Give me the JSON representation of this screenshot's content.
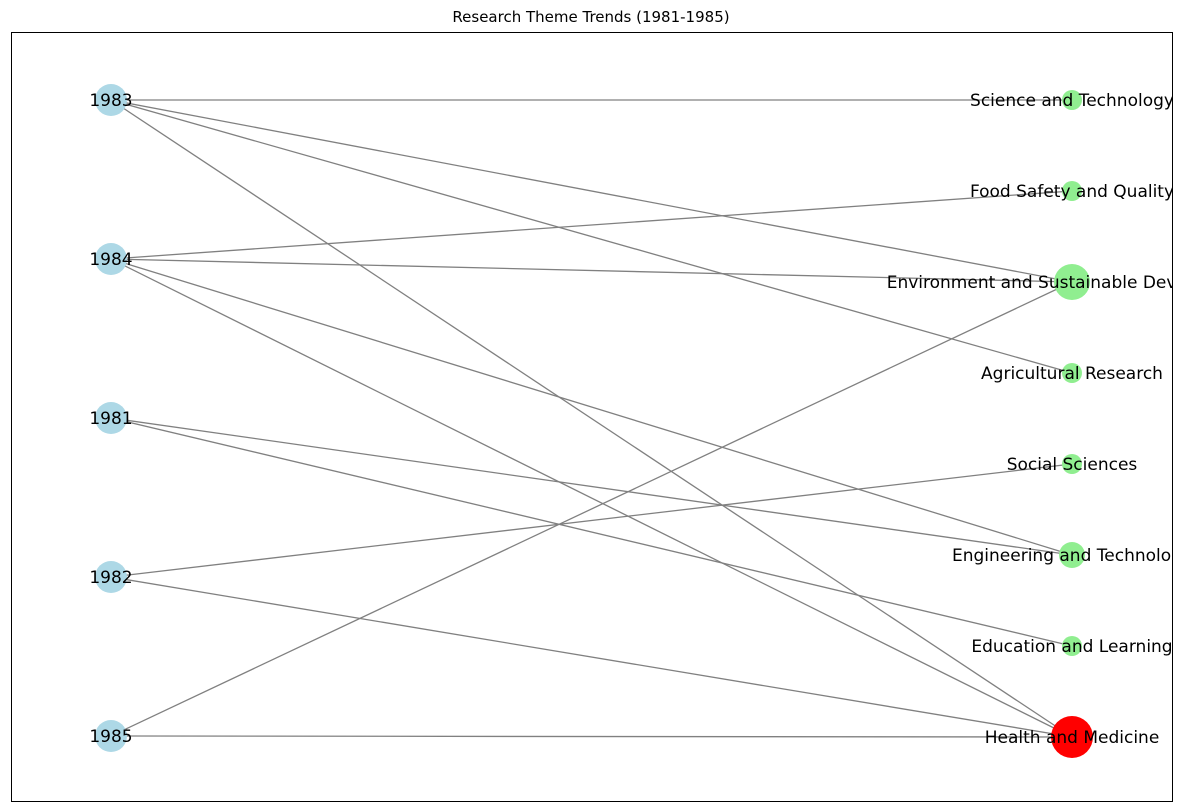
{
  "title": "Research Theme Trends (1981-1985)",
  "colors": {
    "year_node": "#add8e6",
    "theme_node": "#90ee90",
    "highlight_node": "#ff0000",
    "edge": "#808080"
  },
  "years": [
    "1983",
    "1984",
    "1981",
    "1982",
    "1985"
  ],
  "themes": [
    {
      "label": "Science and Technology",
      "degree": 1,
      "highlight": false
    },
    {
      "label": "Food Safety and Quality",
      "degree": 1,
      "highlight": false
    },
    {
      "label": "Environment and Sustainable Development",
      "degree": 3,
      "highlight": false
    },
    {
      "label": "Agricultural Research",
      "degree": 1,
      "highlight": false
    },
    {
      "label": "Social Sciences",
      "degree": 1,
      "highlight": false
    },
    {
      "label": "Engineering and Technology",
      "degree": 2,
      "highlight": false
    },
    {
      "label": "Education and Learning",
      "degree": 1,
      "highlight": false
    },
    {
      "label": "Health and Medicine",
      "degree": 4,
      "highlight": true
    }
  ],
  "edges": [
    [
      "1983",
      "Science and Technology"
    ],
    [
      "1983",
      "Environment and Sustainable Development"
    ],
    [
      "1983",
      "Agricultural Research"
    ],
    [
      "1983",
      "Health and Medicine"
    ],
    [
      "1984",
      "Food Safety and Quality"
    ],
    [
      "1984",
      "Environment and Sustainable Development"
    ],
    [
      "1984",
      "Engineering and Technology"
    ],
    [
      "1984",
      "Health and Medicine"
    ],
    [
      "1981",
      "Engineering and Technology"
    ],
    [
      "1981",
      "Education and Learning"
    ],
    [
      "1982",
      "Social Sciences"
    ],
    [
      "1982",
      "Health and Medicine"
    ],
    [
      "1985",
      "Environment and Sustainable Development"
    ],
    [
      "1985",
      "Health and Medicine"
    ]
  ]
}
